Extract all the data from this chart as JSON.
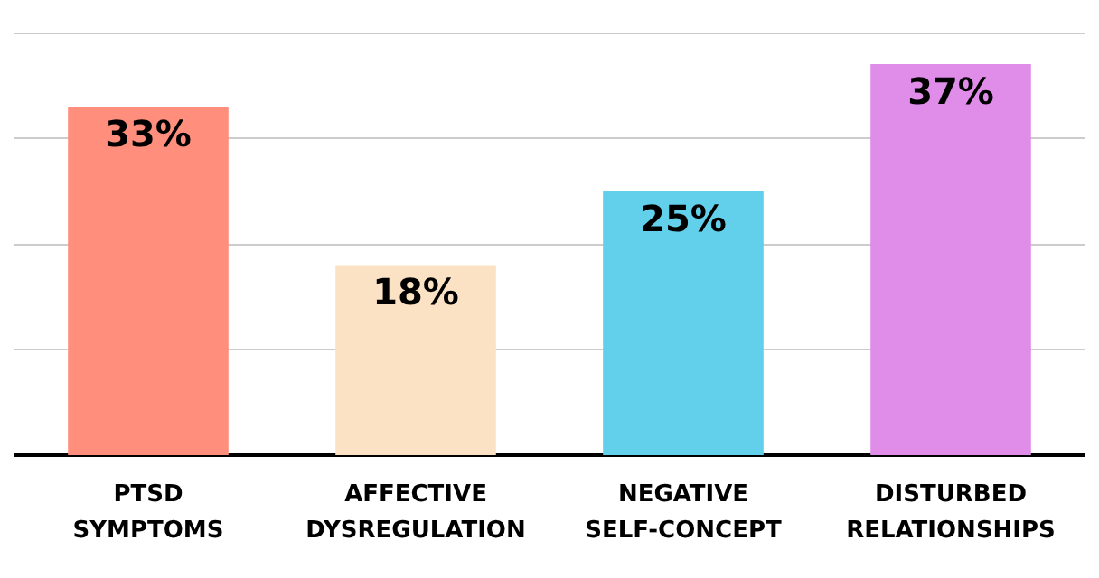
{
  "chart_data": {
    "type": "bar",
    "categories": [
      "PTSD\nSYMPTOMS",
      "AFFECTIVE\nDYSREGULATION",
      "NEGATIVE\nSELF-CONCEPT",
      "DISTURBED\nRELATIONSHIPS"
    ],
    "values": [
      33,
      18,
      25,
      37
    ],
    "colors": [
      "#ff8f7c",
      "#fce2c4",
      "#62cfeb",
      "#e08de9"
    ],
    "value_labels": [
      "33%",
      "18%",
      "25%",
      "37%"
    ],
    "grid": "y"
  }
}
